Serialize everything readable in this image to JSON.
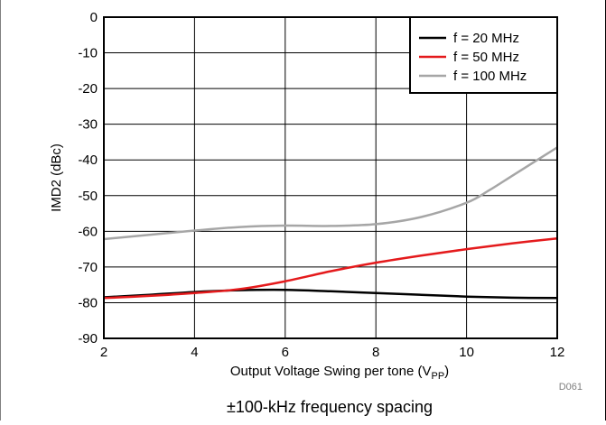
{
  "chart_data": {
    "type": "line",
    "title": "",
    "xlabel": "Output Voltage Swing per tone (V",
    "xlabel_sub": "PP",
    "xlabel_end": ")",
    "ylabel": "IMD2 (dBc)",
    "xlim": [
      2,
      12
    ],
    "ylim": [
      -90,
      0
    ],
    "xticks": [
      2,
      4,
      6,
      8,
      10,
      12
    ],
    "yticks": [
      0,
      -10,
      -20,
      -30,
      -40,
      -50,
      -60,
      -70,
      -80,
      -90
    ],
    "grid": true,
    "legend_position": "top-right",
    "series": [
      {
        "name": "f = 20 MHz",
        "color": "#000000",
        "x": [
          2,
          3,
          4,
          5,
          6,
          7,
          8,
          9,
          10,
          11,
          12
        ],
        "y": [
          -78.5,
          -77.8,
          -77,
          -76.5,
          -76.4,
          -76.8,
          -77.3,
          -77.8,
          -78.3,
          -78.6,
          -78.7
        ]
      },
      {
        "name": "f = 50 MHz",
        "color": "#e41a1c",
        "x": [
          2,
          3,
          4,
          5,
          6,
          7,
          8,
          9,
          10,
          11,
          12
        ],
        "y": [
          -78.7,
          -78.1,
          -77.3,
          -76.2,
          -74,
          -71.2,
          -68.8,
          -66.8,
          -65,
          -63.4,
          -62
        ]
      },
      {
        "name": "f = 100 MHz",
        "color": "#a6a6a6",
        "x": [
          2,
          3,
          4,
          5,
          6,
          7,
          8,
          9,
          10,
          10.5,
          11,
          11.5,
          12
        ],
        "y": [
          -62.2,
          -61,
          -59.8,
          -58.8,
          -58.4,
          -58.5,
          -58,
          -56,
          -52,
          -48.5,
          -44.5,
          -40.5,
          -36.5
        ]
      }
    ]
  },
  "figure_id": "D061",
  "caption": "±100-kHz frequency spacing"
}
